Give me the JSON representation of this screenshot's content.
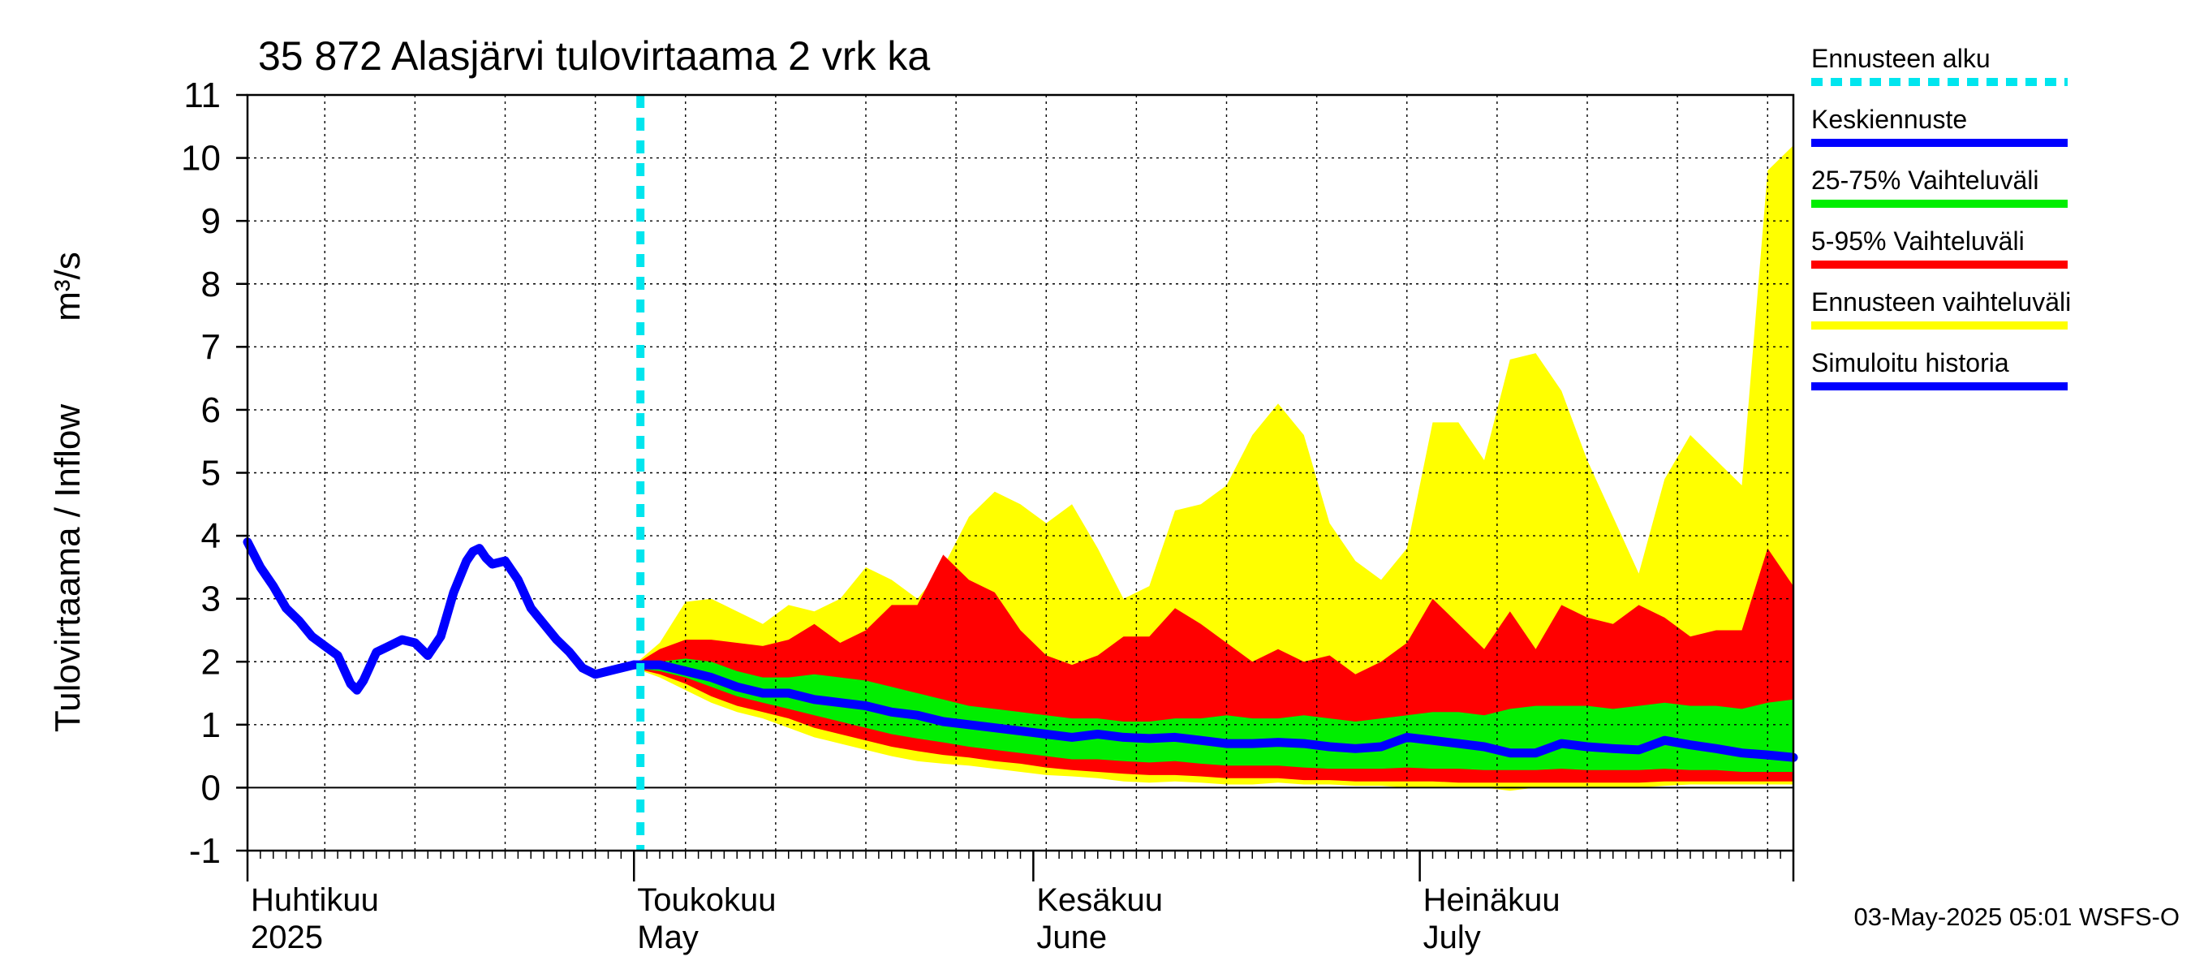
{
  "chart_data": {
    "type": "area",
    "title": "35 872 Alasjärvi tulovirtaama 2 vrk ka",
    "ylabel_main": "Tulovirtaama / Inflow",
    "ylabel_unit": "m³/s",
    "ylim": [
      -1,
      11
    ],
    "yticks": [
      "-1",
      "0",
      "1",
      "2",
      "3",
      "4",
      "5",
      "6",
      "7",
      "8",
      "9",
      "10",
      "11"
    ],
    "xlim_days": [
      0,
      120
    ],
    "month_labels": [
      {
        "fi": "Huhtikuu",
        "en": "2025",
        "day": 0
      },
      {
        "fi": "Toukokuu",
        "en": "May",
        "day": 30
      },
      {
        "fi": "Kesäkuu",
        "en": "June",
        "day": 61
      },
      {
        "fi": "Heinäkuu",
        "en": "July",
        "day": 91
      }
    ],
    "forecast_start_day": 30.5,
    "legend": [
      {
        "label": "Ennusteen alku",
        "color": "#00e5ee",
        "style": "dashed"
      },
      {
        "label": "Keskiennuste",
        "color": "#0000ff",
        "style": "solid"
      },
      {
        "label": "25-75% Vaihteluväli",
        "color": "#00ee00",
        "style": "solid"
      },
      {
        "label": "5-95% Vaihteluväli",
        "color": "#ff0000",
        "style": "solid"
      },
      {
        "label": "Ennusteen vaihteluväli",
        "color": "#ffff00",
        "style": "solid"
      },
      {
        "label": "Simuloitu historia",
        "color": "#0000ff",
        "style": "solid"
      }
    ],
    "series": [
      {
        "name": "Simuloitu historia",
        "x": [
          0,
          1,
          2,
          3,
          4,
          5,
          6,
          7,
          8,
          8.5,
          9,
          10,
          11,
          12,
          13,
          14,
          15,
          15.5,
          16,
          17,
          17.5,
          18,
          18.5,
          19,
          20,
          21,
          22,
          23,
          24,
          25,
          26,
          27,
          28,
          29,
          30
        ],
        "values": [
          3.9,
          3.5,
          3.2,
          2.85,
          2.65,
          2.4,
          2.25,
          2.1,
          1.65,
          1.55,
          1.7,
          2.15,
          2.25,
          2.35,
          2.3,
          2.1,
          2.4,
          2.75,
          3.1,
          3.6,
          3.75,
          3.8,
          3.65,
          3.55,
          3.6,
          3.3,
          2.85,
          2.6,
          2.35,
          2.15,
          1.9,
          1.8,
          1.85,
          1.9,
          1.95
        ]
      },
      {
        "name": "Keskiennuste",
        "x": [
          30,
          32,
          34,
          36,
          38,
          40,
          42,
          44,
          46,
          48,
          50,
          52,
          54,
          56,
          58,
          60,
          62,
          64,
          66,
          68,
          70,
          72,
          74,
          76,
          78,
          80,
          82,
          84,
          86,
          88,
          90,
          92,
          94,
          96,
          98,
          100,
          102,
          104,
          106,
          108,
          110,
          112,
          114,
          116,
          118,
          120
        ],
        "values": [
          1.95,
          1.95,
          1.85,
          1.75,
          1.6,
          1.5,
          1.5,
          1.4,
          1.35,
          1.3,
          1.2,
          1.15,
          1.05,
          1.0,
          0.95,
          0.9,
          0.85,
          0.8,
          0.85,
          0.8,
          0.78,
          0.8,
          0.75,
          0.7,
          0.7,
          0.72,
          0.7,
          0.65,
          0.62,
          0.65,
          0.8,
          0.75,
          0.7,
          0.65,
          0.55,
          0.55,
          0.7,
          0.65,
          0.62,
          0.6,
          0.75,
          0.68,
          0.62,
          0.55,
          0.52,
          0.48
        ]
      }
    ],
    "bands": [
      {
        "name": "Ennusteen vaihteluväli",
        "color": "#ffff00",
        "x": [
          30,
          32,
          34,
          36,
          38,
          40,
          42,
          44,
          46,
          48,
          50,
          52,
          54,
          56,
          58,
          60,
          62,
          64,
          66,
          68,
          70,
          72,
          74,
          76,
          78,
          80,
          82,
          84,
          86,
          88,
          90,
          92,
          94,
          96,
          98,
          100,
          102,
          104,
          106,
          108,
          110,
          112,
          114,
          116,
          118,
          120
        ],
        "upper": [
          1.95,
          2.3,
          2.95,
          3.0,
          2.8,
          2.6,
          2.9,
          2.8,
          3.0,
          3.5,
          3.3,
          3.0,
          3.5,
          4.3,
          4.7,
          4.5,
          4.2,
          4.5,
          3.8,
          3.0,
          3.2,
          4.4,
          4.5,
          4.8,
          5.6,
          6.1,
          5.6,
          4.2,
          3.6,
          3.3,
          3.8,
          5.8,
          5.8,
          5.2,
          6.8,
          6.9,
          6.3,
          5.2,
          4.3,
          3.4,
          4.9,
          5.6,
          5.2,
          4.8,
          9.8,
          10.2
        ],
        "lower": [
          1.9,
          1.75,
          1.55,
          1.35,
          1.2,
          1.1,
          0.95,
          0.8,
          0.7,
          0.6,
          0.5,
          0.42,
          0.38,
          0.35,
          0.3,
          0.25,
          0.2,
          0.18,
          0.15,
          0.1,
          0.08,
          0.1,
          0.08,
          0.05,
          0.05,
          0.08,
          0.05,
          0.05,
          0.03,
          0.03,
          0.0,
          0.0,
          0.0,
          0.0,
          -0.05,
          0.0,
          0.0,
          0.0,
          0.0,
          0.0,
          0.03,
          0.05,
          0.05,
          0.05,
          0.05,
          0.05
        ]
      },
      {
        "name": "5-95% Vaihteluväli",
        "color": "#ff0000",
        "x": [
          30,
          32,
          34,
          36,
          38,
          40,
          42,
          44,
          46,
          48,
          50,
          52,
          54,
          56,
          58,
          60,
          62,
          64,
          66,
          68,
          70,
          72,
          74,
          76,
          78,
          80,
          82,
          84,
          86,
          88,
          90,
          92,
          94,
          96,
          98,
          100,
          102,
          104,
          106,
          108,
          110,
          112,
          114,
          116,
          118,
          120
        ],
        "upper": [
          1.95,
          2.2,
          2.35,
          2.35,
          2.3,
          2.25,
          2.35,
          2.6,
          2.3,
          2.5,
          2.9,
          2.9,
          3.7,
          3.3,
          3.1,
          2.5,
          2.1,
          1.95,
          2.1,
          2.4,
          2.4,
          2.85,
          2.6,
          2.3,
          2.0,
          2.2,
          2.0,
          2.1,
          1.8,
          2.0,
          2.3,
          3.0,
          2.6,
          2.2,
          2.8,
          2.2,
          2.9,
          2.7,
          2.6,
          2.9,
          2.7,
          2.4,
          2.5,
          2.5,
          3.8,
          3.2
        ],
        "lower": [
          1.9,
          1.8,
          1.65,
          1.45,
          1.3,
          1.2,
          1.1,
          0.95,
          0.85,
          0.75,
          0.65,
          0.58,
          0.52,
          0.48,
          0.42,
          0.38,
          0.32,
          0.28,
          0.25,
          0.22,
          0.2,
          0.2,
          0.18,
          0.15,
          0.15,
          0.15,
          0.12,
          0.12,
          0.1,
          0.1,
          0.1,
          0.1,
          0.08,
          0.08,
          0.08,
          0.08,
          0.08,
          0.08,
          0.08,
          0.08,
          0.1,
          0.1,
          0.1,
          0.1,
          0.1,
          0.1
        ]
      },
      {
        "name": "25-75% Vaihteluväli",
        "color": "#00ee00",
        "x": [
          30,
          32,
          34,
          36,
          38,
          40,
          42,
          44,
          46,
          48,
          50,
          52,
          54,
          56,
          58,
          60,
          62,
          64,
          66,
          68,
          70,
          72,
          74,
          76,
          78,
          80,
          82,
          84,
          86,
          88,
          90,
          92,
          94,
          96,
          98,
          100,
          102,
          104,
          106,
          108,
          110,
          112,
          114,
          116,
          118,
          120
        ],
        "upper": [
          1.95,
          2.0,
          2.05,
          2.0,
          1.85,
          1.75,
          1.75,
          1.8,
          1.75,
          1.7,
          1.6,
          1.5,
          1.4,
          1.3,
          1.25,
          1.2,
          1.15,
          1.1,
          1.1,
          1.05,
          1.05,
          1.1,
          1.1,
          1.15,
          1.1,
          1.1,
          1.15,
          1.1,
          1.05,
          1.1,
          1.15,
          1.2,
          1.2,
          1.15,
          1.25,
          1.3,
          1.3,
          1.3,
          1.25,
          1.3,
          1.35,
          1.3,
          1.3,
          1.25,
          1.35,
          1.4
        ],
        "lower": [
          1.9,
          1.85,
          1.75,
          1.6,
          1.45,
          1.35,
          1.25,
          1.15,
          1.05,
          0.95,
          0.85,
          0.78,
          0.72,
          0.65,
          0.6,
          0.55,
          0.5,
          0.45,
          0.45,
          0.42,
          0.4,
          0.42,
          0.38,
          0.35,
          0.35,
          0.35,
          0.32,
          0.3,
          0.3,
          0.3,
          0.32,
          0.3,
          0.3,
          0.28,
          0.28,
          0.28,
          0.3,
          0.28,
          0.28,
          0.28,
          0.3,
          0.28,
          0.28,
          0.25,
          0.25,
          0.25
        ]
      }
    ],
    "footer": "03-May-2025 05:01 WSFS-O"
  }
}
